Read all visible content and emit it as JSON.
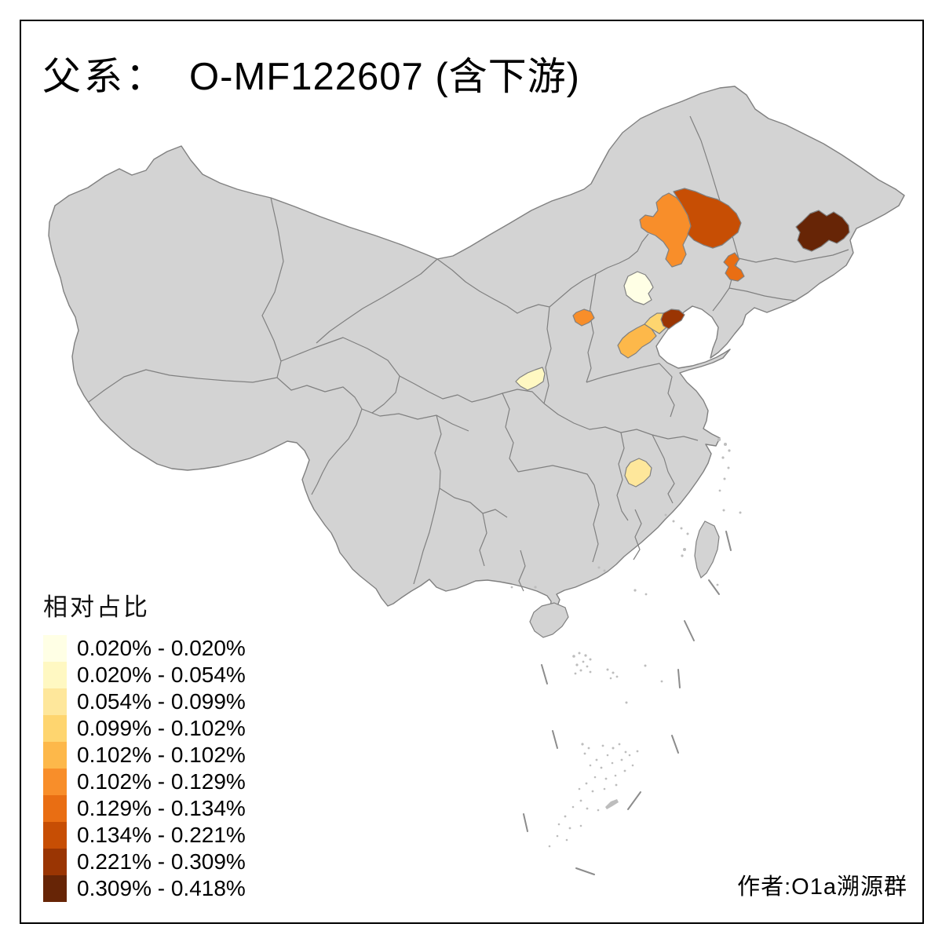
{
  "title": {
    "prefix": "父系：",
    "main": "O-MF122607 (含下游)"
  },
  "legend": {
    "title": "相对占比",
    "entries": [
      {
        "label": "0.020% - 0.020%",
        "color": "#FFFFE5"
      },
      {
        "label": "0.020% - 0.054%",
        "color": "#FFF8C2"
      },
      {
        "label": "0.054% - 0.099%",
        "color": "#FEE79B"
      },
      {
        "label": "0.099% - 0.102%",
        "color": "#FED56F"
      },
      {
        "label": "0.102% - 0.102%",
        "color": "#FDB84A"
      },
      {
        "label": "0.102% - 0.129%",
        "color": "#F88E2A"
      },
      {
        "label": "0.129% - 0.134%",
        "color": "#E96E13"
      },
      {
        "label": "0.134% - 0.221%",
        "color": "#C74E04"
      },
      {
        "label": "0.221% - 0.309%",
        "color": "#9A3503"
      },
      {
        "label": "0.309% - 0.418%",
        "color": "#672506"
      }
    ]
  },
  "attribution": "作者:O1a溯源群",
  "map": {
    "colors": {
      "land": "#D3D3D3",
      "border": "#808080",
      "sea": "#FFFFFF",
      "islet": "#BDBDBD",
      "dash": "#8C8C8C"
    },
    "regions": [
      {
        "id": "beijing-area",
        "class_index": 0
      },
      {
        "id": "central-shaanxi-area",
        "class_index": 1
      },
      {
        "id": "eastern-hubei-area",
        "class_index": 2
      },
      {
        "id": "cangzhou-band-area",
        "class_index": 3
      },
      {
        "id": "dezhou-band-area",
        "class_index": 4
      },
      {
        "id": "xilingol-area",
        "class_index": 5
      },
      {
        "id": "central-shanxi-area",
        "class_index": 5
      },
      {
        "id": "eastern-liaoning-area",
        "class_index": 6
      },
      {
        "id": "tongliao-chifeng-area",
        "class_index": 7
      },
      {
        "id": "tangshan-coast-area",
        "class_index": 8
      },
      {
        "id": "eastern-heilongjiang-area",
        "class_index": 9
      }
    ]
  },
  "chart_data": {
    "type": "choropleth",
    "title": "父系： O-MF122607 (含下游)",
    "legend_title": "相对占比",
    "legend_position": "bottom-left",
    "classes": [
      {
        "range": "0.020% - 0.020%",
        "color": "#FFFFE5"
      },
      {
        "range": "0.020% - 0.054%",
        "color": "#FFF8C2"
      },
      {
        "range": "0.054% - 0.099%",
        "color": "#FEE79B"
      },
      {
        "range": "0.099% - 0.102%",
        "color": "#FED56F"
      },
      {
        "range": "0.102% - 0.102%",
        "color": "#FDB84A"
      },
      {
        "range": "0.102% - 0.129%",
        "color": "#F88E2A"
      },
      {
        "range": "0.129% - 0.134%",
        "color": "#E96E13"
      },
      {
        "range": "0.134% - 0.221%",
        "color": "#C74E04"
      },
      {
        "range": "0.221% - 0.309%",
        "color": "#9A3503"
      },
      {
        "range": "0.309% - 0.418%",
        "color": "#672506"
      }
    ],
    "highlighted_regions": [
      {
        "id": "beijing-area",
        "value_range": "0.020% - 0.020%"
      },
      {
        "id": "central-shaanxi-area",
        "value_range": "0.020% - 0.054%"
      },
      {
        "id": "eastern-hubei-area",
        "value_range": "0.054% - 0.099%"
      },
      {
        "id": "cangzhou-band-area",
        "value_range": "0.099% - 0.102%"
      },
      {
        "id": "dezhou-band-area",
        "value_range": "0.102% - 0.102%"
      },
      {
        "id": "xilingol-area",
        "value_range": "0.102% - 0.129%"
      },
      {
        "id": "central-shanxi-area",
        "value_range": "0.102% - 0.129%"
      },
      {
        "id": "eastern-liaoning-area",
        "value_range": "0.129% - 0.134%"
      },
      {
        "id": "tongliao-chifeng-area",
        "value_range": "0.134% - 0.221%"
      },
      {
        "id": "tangshan-coast-area",
        "value_range": "0.221% - 0.309%"
      },
      {
        "id": "eastern-heilongjiang-area",
        "value_range": "0.309% - 0.418%"
      }
    ],
    "base_map": "China provinces with Taiwan, Hainan and South China Sea islands / dash line"
  }
}
